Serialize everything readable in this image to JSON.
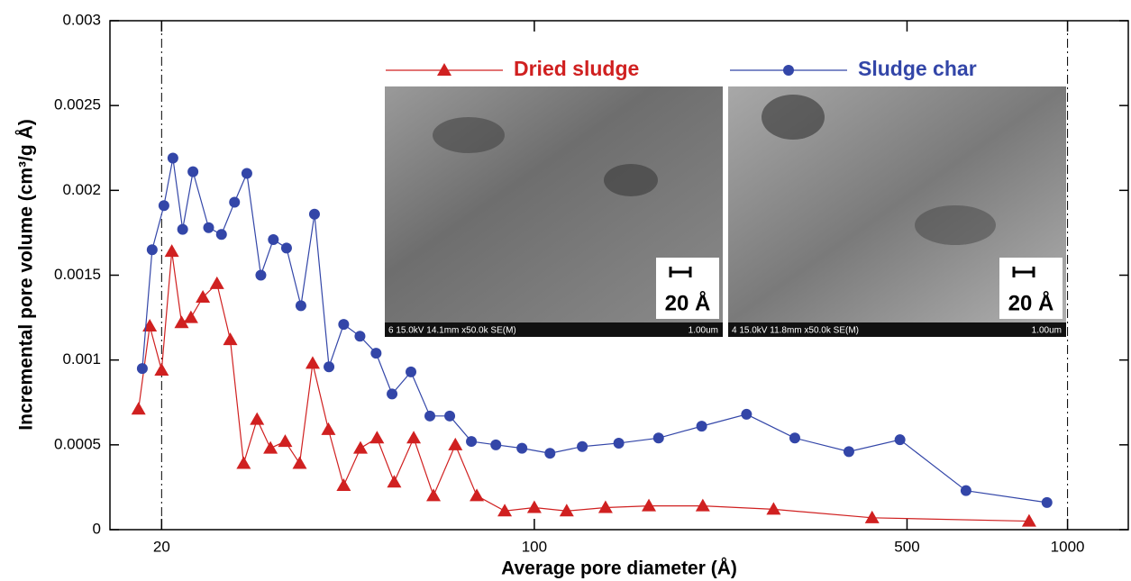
{
  "chart_data": {
    "type": "line",
    "x_label": "Average pore diameter (Å)",
    "y_label": "Incremental pore volume (cm³/g Å)",
    "xscale": "log",
    "xlim": [
      16,
      1300
    ],
    "xticks": [
      20,
      100,
      500,
      1000
    ],
    "ylim": [
      0,
      0.003
    ],
    "yticks": [
      0,
      0.0005,
      0.001,
      0.0015,
      0.002,
      0.0025,
      0.003
    ],
    "reference_lines": [
      20,
      1000
    ],
    "legend": "top",
    "series": [
      {
        "name": "Dried sludge",
        "color": "#d02020",
        "marker": "triangle",
        "x": [
          18.1,
          19.0,
          20,
          20.9,
          21.8,
          22.7,
          23.9,
          25.4,
          26.9,
          28.5,
          30.2,
          32.0,
          34.1,
          36.3,
          38.4,
          41.1,
          43.9,
          47.2,
          50.7,
          54.6,
          59.4,
          64.7,
          71.1,
          78.0,
          88.0,
          100,
          115,
          136,
          164,
          207,
          281,
          430,
          847
        ],
        "values": [
          0.00071,
          0.0012,
          0.00094,
          0.00164,
          0.00122,
          0.00125,
          0.00137,
          0.00145,
          0.00112,
          0.00039,
          0.00065,
          0.00048,
          0.00052,
          0.00039,
          0.00098,
          0.00059,
          0.00026,
          0.00048,
          0.00054,
          0.00028,
          0.00054,
          0.0002,
          0.0005,
          0.0002,
          0.00011,
          0.00013,
          0.00011,
          0.00013,
          0.00014,
          0.00014,
          0.00012,
          7e-05,
          5e-05
        ]
      },
      {
        "name": "Sludge char",
        "color": "#3346a8",
        "marker": "circle",
        "x": [
          18.4,
          19.2,
          20.2,
          21.0,
          21.9,
          22.9,
          24.5,
          25.9,
          27.4,
          28.9,
          30.7,
          32.4,
          34.3,
          36.5,
          38.7,
          41.2,
          43.9,
          47.1,
          50.5,
          54.1,
          58.7,
          63.7,
          69.4,
          76.2,
          84.7,
          94.8,
          107,
          123,
          144,
          171,
          206,
          250,
          308,
          389,
          485,
          645,
          915
        ],
        "values": [
          0.00095,
          0.00165,
          0.00191,
          0.00219,
          0.00177,
          0.00211,
          0.00178,
          0.00174,
          0.00193,
          0.0021,
          0.0015,
          0.00171,
          0.00166,
          0.00132,
          0.00186,
          0.00096,
          0.00121,
          0.00114,
          0.00104,
          0.0008,
          0.00093,
          0.00067,
          0.00067,
          0.00052,
          0.0005,
          0.00048,
          0.00045,
          0.00049,
          0.00051,
          0.00054,
          0.00061,
          0.00068,
          0.00054,
          0.00046,
          0.00053,
          0.00023,
          0.00016
        ]
      }
    ],
    "insets": [
      {
        "caption": "6 15.0kV 14.1mm x50.0k SE(M)",
        "scale_text": "1.00um",
        "scale_bar": "20 Å"
      },
      {
        "caption": "4 15.0kV 11.8mm x50.0k SE(M)",
        "scale_text": "1.00um",
        "scale_bar": "20 Å"
      }
    ]
  }
}
